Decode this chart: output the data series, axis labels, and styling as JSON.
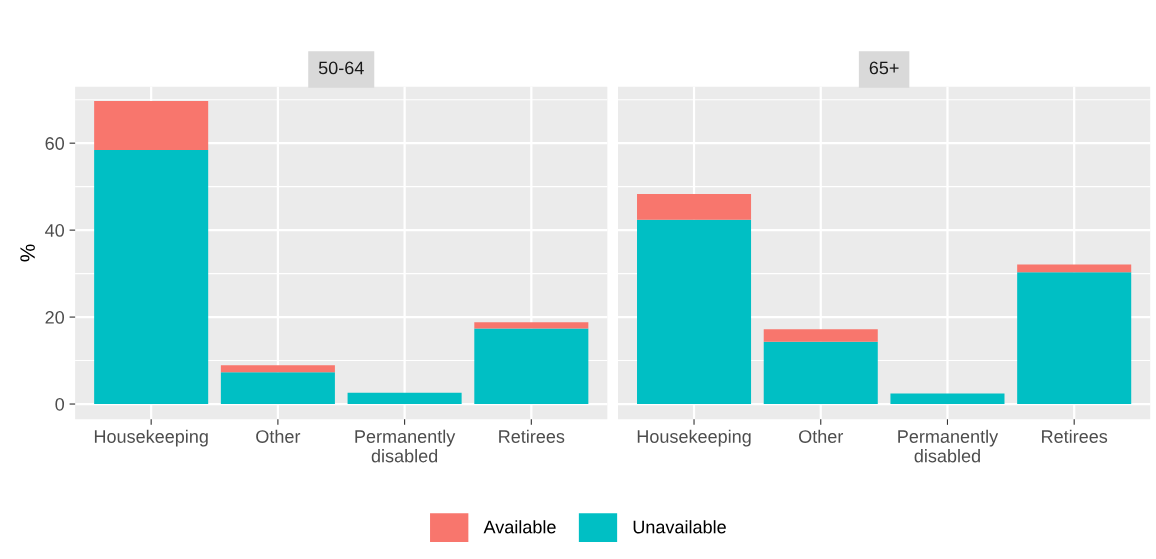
{
  "chart_data": [
    {
      "type": "bar",
      "title": "50-64",
      "ylabel": "%",
      "categories": [
        "Housekeeping",
        "Other",
        "Permanently\ndisabled",
        "Retirees"
      ],
      "stacked": true,
      "series": [
        {
          "name": "Unavailable",
          "color": "#00bfc4",
          "values": [
            58.4,
            7.3,
            2.6,
            17.4
          ]
        },
        {
          "name": "Available",
          "color": "#f8766d",
          "values": [
            11.3,
            1.6,
            0,
            1.4
          ]
        }
      ],
      "ylim": [
        -3.5,
        73
      ],
      "yticks": [
        0,
        20,
        40,
        60
      ],
      "grid": true,
      "legend": "bottom"
    },
    {
      "type": "bar",
      "title": "65+",
      "categories": [
        "Housekeeping",
        "Other",
        "Permanently\ndisabled",
        "Retirees"
      ],
      "stacked": true,
      "series": [
        {
          "name": "Unavailable",
          "color": "#00bfc4",
          "values": [
            42.4,
            14.3,
            2.4,
            30.3
          ]
        },
        {
          "name": "Available",
          "color": "#f8766d",
          "values": [
            5.9,
            2.9,
            0,
            1.8
          ]
        }
      ],
      "ylim": [
        -3.5,
        73
      ],
      "yticks": [
        0,
        20,
        40,
        60
      ],
      "grid": true,
      "tick_labels": "x",
      "legend": "bottom"
    }
  ]
}
